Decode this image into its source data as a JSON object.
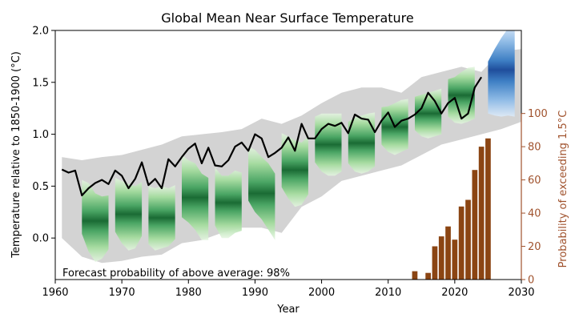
{
  "chart_data": {
    "type": "line",
    "title": "Global Mean Near Surface Temperature",
    "xlabel": "Year",
    "ylabel": "Temperature relative to 1850-1900 (°C)",
    "ylabel_right": "Probability of exceeding 1.5°C",
    "annotation": "Forecast probability of above average: 98%",
    "xlim": [
      1960,
      2030
    ],
    "ylim": [
      -0.4,
      2.0
    ],
    "ylim_right": [
      0,
      150
    ],
    "xticks": [
      1960,
      1970,
      1980,
      1990,
      2000,
      2010,
      2020,
      2030
    ],
    "yticks": [
      0.0,
      0.5,
      1.0,
      1.5,
      2.0
    ],
    "yticks_right": [
      0,
      20,
      40,
      60,
      80,
      100
    ],
    "colors": {
      "observed": "#000000",
      "ensemble_range": "#d3d3d3",
      "hindcast_inner": "#1a6b34",
      "hindcast_outer": "#c8ebc8",
      "forecast_inner": "#1f4e9c",
      "forecast_outer": "#cfe3f6",
      "bars": "#8b4513",
      "right_axis": "#a0522d"
    },
    "observed": {
      "name": "Observed",
      "x": [
        1961,
        1962,
        1963,
        1964,
        1965,
        1966,
        1967,
        1968,
        1969,
        1970,
        1971,
        1972,
        1973,
        1974,
        1975,
        1976,
        1977,
        1978,
        1979,
        1980,
        1981,
        1982,
        1983,
        1984,
        1985,
        1986,
        1987,
        1988,
        1989,
        1990,
        1991,
        1992,
        1993,
        1994,
        1995,
        1996,
        1997,
        1998,
        1999,
        2000,
        2001,
        2002,
        2003,
        2004,
        2005,
        2006,
        2007,
        2008,
        2009,
        2010,
        2011,
        2012,
        2013,
        2014,
        2015,
        2016,
        2017,
        2018,
        2019,
        2020,
        2021,
        2022,
        2023,
        2024
      ],
      "y": [
        0.66,
        0.63,
        0.65,
        0.41,
        0.48,
        0.53,
        0.56,
        0.52,
        0.65,
        0.6,
        0.48,
        0.57,
        0.73,
        0.51,
        0.57,
        0.48,
        0.76,
        0.69,
        0.78,
        0.86,
        0.91,
        0.72,
        0.87,
        0.7,
        0.69,
        0.75,
        0.88,
        0.92,
        0.84,
        1.0,
        0.96,
        0.78,
        0.82,
        0.87,
        0.97,
        0.84,
        1.1,
        0.96,
        0.96,
        1.05,
        1.1,
        1.08,
        1.11,
        1.01,
        1.19,
        1.15,
        1.14,
        1.02,
        1.13,
        1.21,
        1.07,
        1.13,
        1.15,
        1.19,
        1.25,
        1.4,
        1.32,
        1.2,
        1.3,
        1.35,
        1.15,
        1.2,
        1.45,
        1.55
      ]
    },
    "ensemble_range": {
      "x": [
        1961,
        1964,
        1967,
        1970,
        1973,
        1976,
        1979,
        1982,
        1985,
        1988,
        1991,
        1994,
        1997,
        2000,
        2003,
        2006,
        2009,
        2012,
        2015,
        2018,
        2021,
        2024,
        2027,
        2030
      ],
      "upper": [
        0.78,
        0.75,
        0.78,
        0.8,
        0.85,
        0.9,
        0.98,
        1.0,
        1.02,
        1.05,
        1.15,
        1.1,
        1.18,
        1.3,
        1.4,
        1.45,
        1.45,
        1.4,
        1.55,
        1.6,
        1.65,
        1.6,
        1.8,
        1.82
      ],
      "lower": [
        0.0,
        -0.18,
        -0.24,
        -0.22,
        -0.18,
        -0.16,
        -0.05,
        -0.02,
        0.05,
        0.1,
        0.1,
        0.05,
        0.3,
        0.4,
        0.55,
        0.6,
        0.65,
        0.7,
        0.8,
        0.9,
        0.95,
        1.0,
        1.05,
        1.12
      ]
    },
    "hindcast_plumes": [
      {
        "start": 1964,
        "center": [
          0.3,
          0.2,
          0.1,
          0.1,
          0.15
        ],
        "spread": [
          0.26,
          0.33,
          0.33,
          0.3,
          0.26
        ]
      },
      {
        "start": 1969,
        "center": [
          0.32,
          0.25,
          0.2,
          0.2,
          0.28
        ],
        "spread": [
          0.26,
          0.3,
          0.32,
          0.3,
          0.26
        ]
      },
      {
        "start": 1974,
        "center": [
          0.22,
          0.18,
          0.2,
          0.2,
          0.25
        ],
        "spread": [
          0.28,
          0.3,
          0.3,
          0.28,
          0.26
        ]
      },
      {
        "start": 1979,
        "center": [
          0.5,
          0.45,
          0.4,
          0.3,
          0.28
        ],
        "spread": [
          0.3,
          0.3,
          0.32,
          0.32,
          0.3
        ]
      },
      {
        "start": 1984,
        "center": [
          0.4,
          0.3,
          0.3,
          0.35,
          0.35
        ],
        "spread": [
          0.28,
          0.3,
          0.3,
          0.3,
          0.28
        ]
      },
      {
        "start": 1989,
        "center": [
          0.62,
          0.55,
          0.48,
          0.4,
          0.3
        ],
        "spread": [
          0.26,
          0.3,
          0.3,
          0.32,
          0.32
        ]
      },
      {
        "start": 1994,
        "center": [
          0.75,
          0.68,
          0.62,
          0.62,
          0.7
        ],
        "spread": [
          0.26,
          0.3,
          0.32,
          0.3,
          0.28
        ]
      },
      {
        "start": 1999,
        "center": [
          0.95,
          0.92,
          0.9,
          0.9,
          0.92
        ],
        "spread": [
          0.22,
          0.28,
          0.3,
          0.3,
          0.28
        ]
      },
      {
        "start": 2004,
        "center": [
          0.92,
          0.9,
          0.9,
          0.92,
          0.95
        ],
        "spread": [
          0.2,
          0.26,
          0.28,
          0.28,
          0.26
        ]
      },
      {
        "start": 2009,
        "center": [
          1.08,
          1.05,
          1.05,
          1.08,
          1.1
        ],
        "spread": [
          0.18,
          0.22,
          0.25,
          0.25,
          0.24
        ]
      },
      {
        "start": 2014,
        "center": [
          1.2,
          1.18,
          1.18,
          1.2,
          1.22
        ],
        "spread": [
          0.16,
          0.2,
          0.22,
          0.22,
          0.22
        ]
      },
      {
        "start": 2019,
        "center": [
          1.35,
          1.33,
          1.35,
          1.38,
          1.4
        ],
        "spread": [
          0.18,
          0.22,
          0.25,
          0.26,
          0.25
        ]
      }
    ],
    "forecast_plume": {
      "start": 2025,
      "center": [
        1.45,
        1.5,
        1.55,
        1.6,
        1.62
      ],
      "spread": [
        0.25,
        0.32,
        0.38,
        0.42,
        0.45
      ]
    },
    "probability_bars": {
      "name": "Probability of exceeding 1.5°C",
      "x": [
        2014,
        2016,
        2017,
        2018,
        2019,
        2020,
        2021,
        2022,
        2023,
        2024,
        2025
      ],
      "values": [
        5,
        4,
        20,
        26,
        32,
        24,
        44,
        48,
        66,
        80,
        85
      ]
    }
  }
}
